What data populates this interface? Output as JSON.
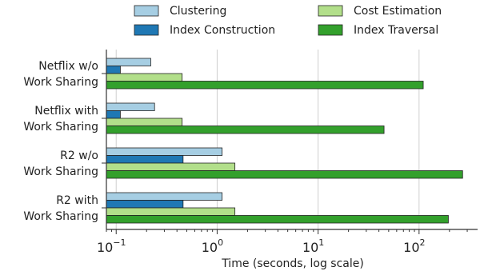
{
  "chart_data": {
    "type": "bar",
    "orientation": "horizontal",
    "title": "",
    "xlabel": "Time (seconds, log scale)",
    "ylabel": "",
    "xscale": "log",
    "xlim": [
      0.08,
      380
    ],
    "x_ticks": [
      {
        "value": 0.1,
        "base": "10",
        "exp": "−1"
      },
      {
        "value": 1,
        "base": "10",
        "exp": "0"
      },
      {
        "value": 10,
        "base": "10",
        "exp": "1"
      },
      {
        "value": 100,
        "base": "10",
        "exp": "2"
      }
    ],
    "grid": "vertical",
    "legend_position": "top",
    "categories": [
      [
        "Netflix w/o",
        "Work Sharing"
      ],
      [
        "Netflix with",
        "Work Sharing"
      ],
      [
        "R2 w/o",
        "Work Sharing"
      ],
      [
        "R2 with",
        "Work Sharing"
      ]
    ],
    "series": [
      {
        "name": "Clustering",
        "color": "#a6cee3",
        "values": [
          0.22,
          0.24,
          1.12,
          1.12
        ]
      },
      {
        "name": "Index Construction",
        "color": "#1f78b4",
        "values": [
          0.11,
          0.11,
          0.46,
          0.46
        ]
      },
      {
        "name": "Cost Estimation",
        "color": "#b2df8a",
        "values": [
          0.45,
          0.45,
          1.5,
          1.5
        ]
      },
      {
        "name": "Index Traversal",
        "color": "#33a02c",
        "values": [
          110,
          45,
          270,
          195
        ]
      }
    ]
  }
}
